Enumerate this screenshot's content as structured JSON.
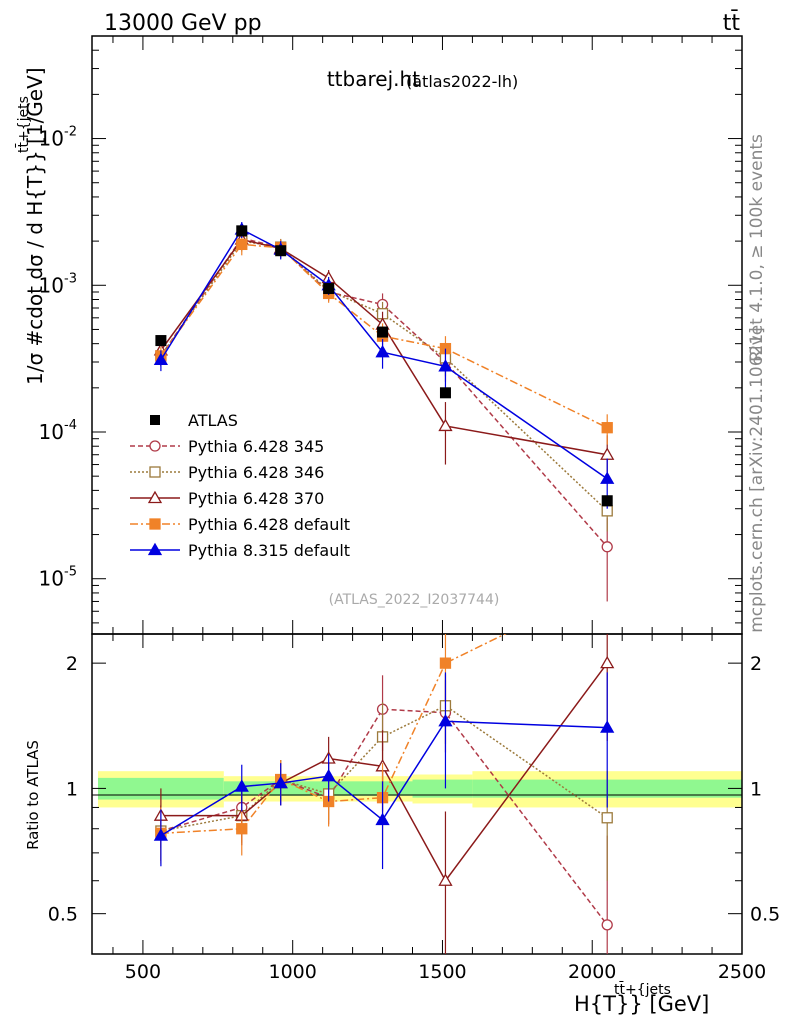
{
  "header": {
    "left": "13000 GeV pp",
    "right": "tt̄"
  },
  "side": {
    "rivet": "Rivet 4.1.0, ≥ 100k events",
    "mcplots": "mcplots.cern.ch [arXiv:2401.10621]"
  },
  "title": {
    "main": "ttbarej.ht",
    "sub": "(atlas2022-lh)"
  },
  "watermark": "(ATLAS_2022_I2037744)",
  "labels": {
    "ylabel_top": "1/σ #cdot dσ / d H{T}} [1/GeV]",
    "ylabel_top_sup": "tt̄+{jets",
    "ylabel_bottom": "Ratio to ATLAS",
    "xlabel": "H{T}} [GeV]",
    "xlabel_sup": "tt̄+{jets"
  },
  "colors": {
    "band_inner": "#90f890",
    "band_outer": "#ffff90"
  },
  "chart_data": [
    {
      "type": "line",
      "scale": "log",
      "xlim": [
        330,
        2500
      ],
      "ylim": [
        4.2e-06,
        0.05
      ],
      "xticks": [
        500,
        1000,
        1500,
        2000,
        2500
      ],
      "yticks": [
        {
          "value": 0.01,
          "label": "10",
          "exp": "-2"
        },
        {
          "value": 0.001,
          "label": "10",
          "exp": "-3"
        },
        {
          "value": 0.0001,
          "label": "10",
          "exp": "-4"
        },
        {
          "value": 1e-05,
          "label": "10",
          "exp": "-5"
        }
      ],
      "data_series": {
        "name": "ATLAS",
        "color": "#000000",
        "x": [
          560,
          830,
          960,
          1120,
          1300,
          1510,
          2050
        ],
        "y": [
          0.00042,
          0.00235,
          0.00172,
          0.00095,
          0.00048,
          0.000185,
          3.4e-05
        ]
      },
      "series": [
        {
          "name": "Pythia 6.428 345",
          "color": "#b03a48",
          "marker": "circle-open",
          "dash": "5,3",
          "x": [
            560,
            830,
            960,
            1120,
            1300,
            1510,
            2050
          ],
          "y": [
            0.00033,
            0.0021,
            0.0018,
            0.0009,
            0.00074,
            0.0003,
            1.65e-05
          ],
          "err": [
            5e-05,
            0.0003,
            0.00025,
            0.00012,
            0.00014,
            8e-05,
            9.5e-06
          ]
        },
        {
          "name": "Pythia 6.428 346",
          "color": "#9c7a3c",
          "marker": "square-open",
          "dash": "2,2",
          "x": [
            560,
            830,
            960,
            1120,
            1300,
            1510,
            2050
          ],
          "y": [
            0.00033,
            0.002,
            0.00182,
            0.00092,
            0.00064,
            0.00032,
            2.9e-05
          ],
          "err": [
            5e-05,
            0.0003,
            0.00025,
            0.00012,
            0.00013,
            8e-05,
            8e-06
          ]
        },
        {
          "name": "Pythia 6.428 370",
          "color": "#8b1a1a",
          "marker": "triangle-open",
          "dash": "",
          "x": [
            560,
            830,
            960,
            1120,
            1300,
            1510,
            2050
          ],
          "y": [
            0.00036,
            0.00205,
            0.00178,
            0.00112,
            0.00054,
            0.00011,
            7e-05
          ],
          "err": [
            6e-05,
            0.0003,
            0.00025,
            0.00015,
            0.00012,
            5e-05,
            2.5e-05
          ]
        },
        {
          "name": "Pythia 6.428 default",
          "color": "#f08228",
          "marker": "square-filled",
          "dash": "8,3,2,3",
          "x": [
            560,
            830,
            960,
            1120,
            1300,
            1510,
            2050
          ],
          "y": [
            0.00033,
            0.0019,
            0.0018,
            0.00088,
            0.00045,
            0.00037,
            0.000107
          ],
          "err": [
            5e-05,
            0.0003,
            0.00025,
            0.00012,
            0.0001,
            8e-05,
            2.5e-05
          ]
        },
        {
          "name": "Pythia 8.315 default",
          "color": "#0000e0",
          "marker": "triangle-filled",
          "dash": "",
          "x": [
            560,
            830,
            960,
            1120,
            1300,
            1510,
            2050
          ],
          "y": [
            0.00031,
            0.0024,
            0.00175,
            0.001,
            0.00035,
            0.00028,
            4.8e-05
          ],
          "err": [
            5e-05,
            0.0003,
            0.00025,
            0.00014,
            8e-05,
            9e-05,
            1.8e-05
          ]
        }
      ]
    },
    {
      "type": "line",
      "scale": "log",
      "xlim": [
        330,
        2500
      ],
      "ylim": [
        0.4,
        2.35
      ],
      "ylabel": "Ratio to ATLAS",
      "yticks": [
        {
          "value": 0.5,
          "label": "0.5"
        },
        {
          "value": 1,
          "label": "1"
        },
        {
          "value": 2,
          "label": "2"
        }
      ],
      "band": {
        "bins": [
          [
            350,
            770
          ],
          [
            770,
            1400
          ],
          [
            1400,
            1600
          ],
          [
            1600,
            2500
          ]
        ],
        "inner": [
          0.06,
          0.04,
          0.05,
          0.05
        ],
        "outer": [
          0.1,
          0.07,
          0.08,
          0.1
        ]
      },
      "series": [
        {
          "name": "Pythia 6.428 345",
          "color": "#b03a48",
          "marker": "circle-open",
          "dash": "5,3",
          "x": [
            560,
            830,
            960,
            1120,
            1300,
            1510,
            2050
          ],
          "y": [
            0.79,
            0.9,
            1.05,
            0.95,
            1.55,
            1.52,
            0.47
          ],
          "err": [
            0.12,
            0.12,
            0.12,
            0.13,
            0.32,
            0.3,
            0.3
          ]
        },
        {
          "name": "Pythia 6.428 346",
          "color": "#9c7a3c",
          "marker": "square-open",
          "dash": "2,2",
          "x": [
            560,
            830,
            960,
            1120,
            1300,
            1510,
            2050
          ],
          "y": [
            0.79,
            0.86,
            1.05,
            0.97,
            1.33,
            1.58,
            0.85
          ],
          "err": [
            0.12,
            0.12,
            0.12,
            0.13,
            0.28,
            0.3,
            0.25
          ]
        },
        {
          "name": "Pythia 6.428 370",
          "color": "#8b1a1a",
          "marker": "triangle-open",
          "dash": "",
          "x": [
            560,
            830,
            960,
            1120,
            1300,
            1510,
            2050
          ],
          "y": [
            0.86,
            0.86,
            1.03,
            1.18,
            1.13,
            0.6,
            2.0
          ],
          "err": [
            0.14,
            0.13,
            0.12,
            0.15,
            0.25,
            0.28,
            0.7
          ]
        },
        {
          "name": "Pythia 6.428 default",
          "color": "#f08228",
          "marker": "square-filled",
          "dash": "8,3,2,3",
          "x": [
            560,
            830,
            960,
            1120,
            1300,
            1510,
            2050
          ],
          "y": [
            0.78,
            0.8,
            1.05,
            0.93,
            0.95,
            2.0,
            3.1
          ],
          "err": [
            0.12,
            0.11,
            0.12,
            0.12,
            0.2,
            0.45,
            0.7
          ]
        },
        {
          "name": "Pythia 8.315 default",
          "color": "#0000e0",
          "marker": "triangle-filled",
          "dash": "",
          "x": [
            560,
            830,
            960,
            1120,
            1300,
            1510,
            2050
          ],
          "y": [
            0.77,
            1.01,
            1.03,
            1.07,
            0.84,
            1.45,
            1.4
          ],
          "err": [
            0.12,
            0.13,
            0.12,
            0.14,
            0.2,
            0.45,
            0.5
          ]
        }
      ],
      "xlabel": "H{T}} [GeV]"
    }
  ]
}
